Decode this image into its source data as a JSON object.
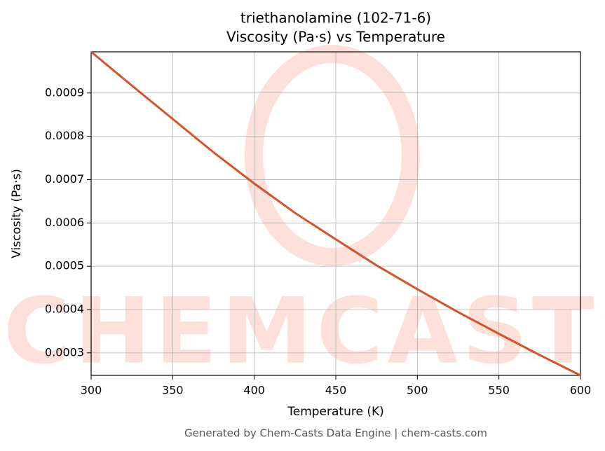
{
  "chart_data": {
    "type": "line",
    "title": "triethanolamine (102-71-6)",
    "subtitle": "Viscosity (Pa·s) vs Temperature",
    "x_label": "Temperature (K)",
    "y_label": "Viscosity (Pa·s)",
    "footer": "Generated by Chem-Casts Data Engine | chem-casts.com",
    "watermark": "CHEMCASTS",
    "x": [
      300,
      325,
      350,
      375,
      400,
      425,
      450,
      475,
      500,
      525,
      550,
      575,
      600
    ],
    "series": [
      {
        "name": "Viscosity",
        "color": "#d6532a",
        "values": [
          0.000995,
          0.000917,
          0.00084,
          0.000763,
          0.000691,
          0.000623,
          0.000562,
          0.000502,
          0.000447,
          0.000394,
          0.000344,
          0.000295,
          0.000248
        ]
      }
    ],
    "xlim": [
      300,
      600
    ],
    "xticks": [
      300,
      350,
      400,
      450,
      500,
      550,
      600
    ],
    "ylim": [
      0.000248,
      0.000995
    ],
    "yticks": [
      0.0003,
      0.0004,
      0.0005,
      0.0006,
      0.0007,
      0.0008,
      0.0009
    ],
    "grid": true
  }
}
